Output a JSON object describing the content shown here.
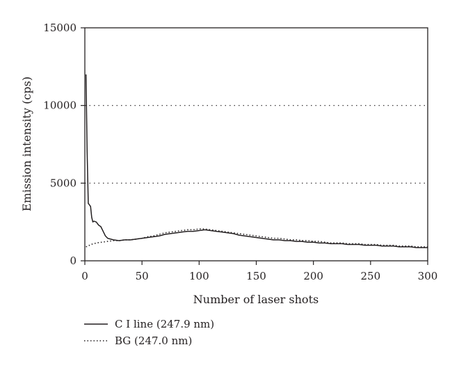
{
  "chart_data": {
    "type": "line",
    "xlabel": "Number of laser shots",
    "ylabel": "Emission intensity (cps)",
    "xlim": [
      0,
      300
    ],
    "ylim": [
      0,
      15000
    ],
    "x_ticks": [
      "0",
      "50",
      "100",
      "150",
      "200",
      "250",
      "300"
    ],
    "y_ticks": [
      "0",
      "5000",
      "10000",
      "15000"
    ],
    "grid": "horizontal dotted lines at 5000 and 10000",
    "legend_position": "bottom-left, below plot",
    "series": [
      {
        "name": "C I line (247.9 nm)",
        "style": "solid",
        "color": "#231f20",
        "points": [
          [
            1,
            12000
          ],
          [
            2,
            7000
          ],
          [
            3,
            3700
          ],
          [
            4,
            3600
          ],
          [
            5,
            3500
          ],
          [
            6,
            2800
          ],
          [
            7,
            2500
          ],
          [
            8,
            2550
          ],
          [
            10,
            2500
          ],
          [
            12,
            2300
          ],
          [
            14,
            2200
          ],
          [
            16,
            1900
          ],
          [
            18,
            1600
          ],
          [
            20,
            1450
          ],
          [
            25,
            1350
          ],
          [
            30,
            1300
          ],
          [
            35,
            1350
          ],
          [
            40,
            1350
          ],
          [
            45,
            1400
          ],
          [
            50,
            1450
          ],
          [
            55,
            1500
          ],
          [
            60,
            1550
          ],
          [
            65,
            1600
          ],
          [
            70,
            1700
          ],
          [
            75,
            1750
          ],
          [
            80,
            1800
          ],
          [
            85,
            1850
          ],
          [
            90,
            1900
          ],
          [
            95,
            1900
          ],
          [
            100,
            1950
          ],
          [
            105,
            2000
          ],
          [
            110,
            1950
          ],
          [
            115,
            1900
          ],
          [
            120,
            1850
          ],
          [
            125,
            1800
          ],
          [
            130,
            1750
          ],
          [
            135,
            1650
          ],
          [
            140,
            1600
          ],
          [
            145,
            1550
          ],
          [
            150,
            1500
          ],
          [
            155,
            1450
          ],
          [
            160,
            1400
          ],
          [
            165,
            1350
          ],
          [
            170,
            1350
          ],
          [
            175,
            1300
          ],
          [
            180,
            1300
          ],
          [
            185,
            1250
          ],
          [
            190,
            1250
          ],
          [
            195,
            1200
          ],
          [
            200,
            1200
          ],
          [
            205,
            1150
          ],
          [
            210,
            1150
          ],
          [
            215,
            1100
          ],
          [
            220,
            1100
          ],
          [
            225,
            1100
          ],
          [
            230,
            1050
          ],
          [
            235,
            1050
          ],
          [
            240,
            1050
          ],
          [
            245,
            1000
          ],
          [
            250,
            1000
          ],
          [
            255,
            1000
          ],
          [
            260,
            950
          ],
          [
            265,
            950
          ],
          [
            270,
            950
          ],
          [
            275,
            900
          ],
          [
            280,
            900
          ],
          [
            285,
            900
          ],
          [
            290,
            850
          ],
          [
            295,
            850
          ],
          [
            300,
            850
          ]
        ]
      },
      {
        "name": "BG (247.0 nm)",
        "style": "dotted",
        "color": "#231f20",
        "points": [
          [
            1,
            900
          ],
          [
            3,
            950
          ],
          [
            5,
            1050
          ],
          [
            8,
            1100
          ],
          [
            10,
            1150
          ],
          [
            15,
            1200
          ],
          [
            20,
            1250
          ],
          [
            25,
            1300
          ],
          [
            30,
            1300
          ],
          [
            35,
            1350
          ],
          [
            40,
            1350
          ],
          [
            45,
            1400
          ],
          [
            50,
            1450
          ],
          [
            55,
            1550
          ],
          [
            60,
            1600
          ],
          [
            65,
            1700
          ],
          [
            70,
            1800
          ],
          [
            75,
            1850
          ],
          [
            80,
            1900
          ],
          [
            85,
            1950
          ],
          [
            90,
            2000
          ],
          [
            95,
            2000
          ],
          [
            100,
            2050
          ],
          [
            105,
            2050
          ],
          [
            110,
            2000
          ],
          [
            115,
            1950
          ],
          [
            120,
            1900
          ],
          [
            125,
            1850
          ],
          [
            130,
            1800
          ],
          [
            135,
            1750
          ],
          [
            140,
            1700
          ],
          [
            145,
            1650
          ],
          [
            150,
            1600
          ],
          [
            155,
            1550
          ],
          [
            160,
            1500
          ],
          [
            165,
            1450
          ],
          [
            170,
            1450
          ],
          [
            175,
            1400
          ],
          [
            180,
            1350
          ],
          [
            185,
            1350
          ],
          [
            190,
            1300
          ],
          [
            195,
            1300
          ],
          [
            200,
            1250
          ],
          [
            205,
            1250
          ],
          [
            210,
            1200
          ],
          [
            215,
            1150
          ],
          [
            220,
            1150
          ],
          [
            225,
            1150
          ],
          [
            230,
            1100
          ],
          [
            235,
            1100
          ],
          [
            240,
            1100
          ],
          [
            245,
            1050
          ],
          [
            250,
            1050
          ],
          [
            255,
            1050
          ],
          [
            260,
            1000
          ],
          [
            265,
            1000
          ],
          [
            270,
            1000
          ],
          [
            275,
            950
          ],
          [
            280,
            950
          ],
          [
            285,
            950
          ],
          [
            290,
            900
          ],
          [
            295,
            900
          ],
          [
            300,
            900
          ]
        ]
      }
    ]
  }
}
